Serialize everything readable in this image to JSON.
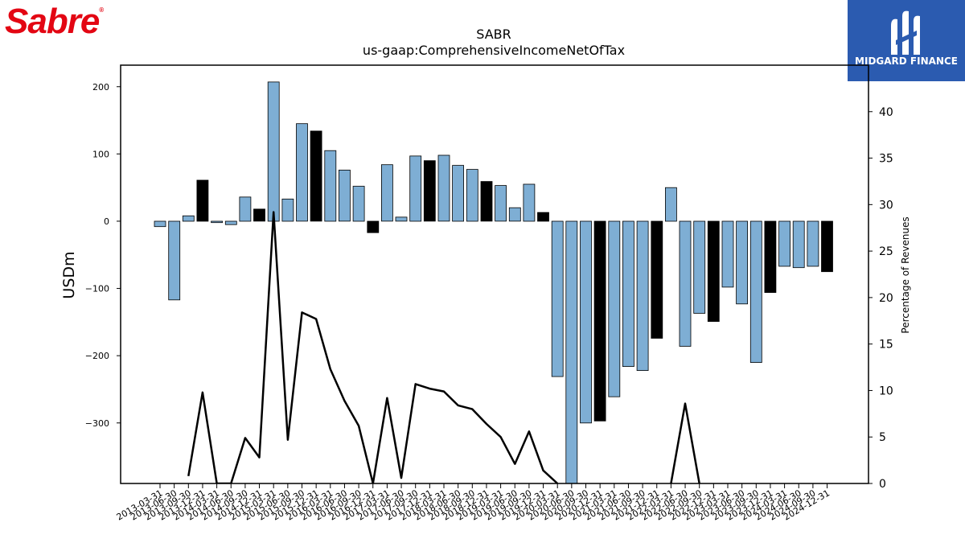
{
  "branding": {
    "left_logo_text": "Sabre",
    "right_logo_text": "MIDGARD FINANCE",
    "left_logo_color": "#e30613",
    "right_logo_bg": "#2b5bb0"
  },
  "chart_data": {
    "type": "bar",
    "title": "SABR",
    "subtitle": "us-gaap:ComprehensiveIncomeNetOfTax",
    "ylabel": "USDm",
    "y2label": "Percentage of Revenues",
    "ylim": [
      -390,
      232
    ],
    "y2lim": [
      0,
      45
    ],
    "yticks": [
      -300,
      -200,
      -100,
      0,
      100,
      200
    ],
    "y2ticks": [
      0,
      5,
      10,
      15,
      20,
      25,
      30,
      35,
      40
    ],
    "grid": false,
    "categories": [
      "2013-03-31",
      "2013-06-30",
      "2013-09-30",
      "2013-12-31",
      "2014-03-31",
      "2014-06-30",
      "2014-09-30",
      "2014-12-31",
      "2015-03-31",
      "2015-06-30",
      "2015-09-30",
      "2015-12-31",
      "2016-03-31",
      "2016-06-30",
      "2016-09-30",
      "2016-12-31",
      "2017-03-31",
      "2017-06-30",
      "2017-09-30",
      "2017-12-31",
      "2018-03-31",
      "2018-06-30",
      "2018-09-30",
      "2018-12-31",
      "2019-03-31",
      "2019-06-30",
      "2019-09-30",
      "2019-12-31",
      "2020-03-31",
      "2020-06-30",
      "2020-09-30",
      "2020-12-31",
      "2021-03-31",
      "2021-06-30",
      "2021-09-30",
      "2021-12-31",
      "2022-03-31",
      "2022-06-30",
      "2022-09-30",
      "2022-12-31",
      "2023-03-31",
      "2023-06-30",
      "2023-09-30",
      "2023-12-31",
      "2024-03-31",
      "2024-06-30",
      "2024-09-30",
      "2024-12-31"
    ],
    "series": [
      {
        "values": [
          -8,
          -117,
          8,
          61,
          -2,
          -5,
          36,
          18,
          207,
          33,
          145,
          134,
          105,
          76,
          52,
          -17,
          84,
          6,
          97,
          90,
          98,
          83,
          77,
          59,
          53,
          20,
          55,
          13,
          -231,
          -400,
          -300,
          -297,
          -261,
          -216,
          -222,
          -174,
          50,
          -186,
          -137,
          -149,
          -98,
          -123,
          -210,
          -106,
          -67,
          -69,
          -67,
          -75
        ],
        "is_q4": [
          false,
          false,
          false,
          true,
          false,
          false,
          false,
          true,
          false,
          false,
          false,
          true,
          false,
          false,
          false,
          true,
          false,
          false,
          false,
          true,
          false,
          false,
          false,
          true,
          false,
          false,
          false,
          true,
          false,
          false,
          false,
          true,
          false,
          false,
          false,
          true,
          false,
          false,
          false,
          true,
          false,
          false,
          false,
          true,
          false,
          false,
          false,
          true
        ],
        "colors": {
          "quarter": "#7eaed4",
          "q4": "#000000"
        }
      },
      {
        "values": [
          null,
          null,
          0.8,
          9.8,
          0,
          0,
          4.9,
          2.8,
          29.2,
          4.7,
          18.4,
          17.7,
          12.3,
          8.9,
          6.2,
          0,
          9.2,
          0.6,
          10.7,
          10.2,
          9.9,
          8.4,
          8.0,
          6.4,
          5.0,
          2.1,
          5.6,
          1.4,
          0,
          null,
          null,
          null,
          null,
          null,
          null,
          null,
          0,
          8.6,
          0,
          null,
          null,
          null,
          null,
          null,
          null,
          null,
          null,
          null
        ],
        "color": "#000000"
      }
    ]
  }
}
